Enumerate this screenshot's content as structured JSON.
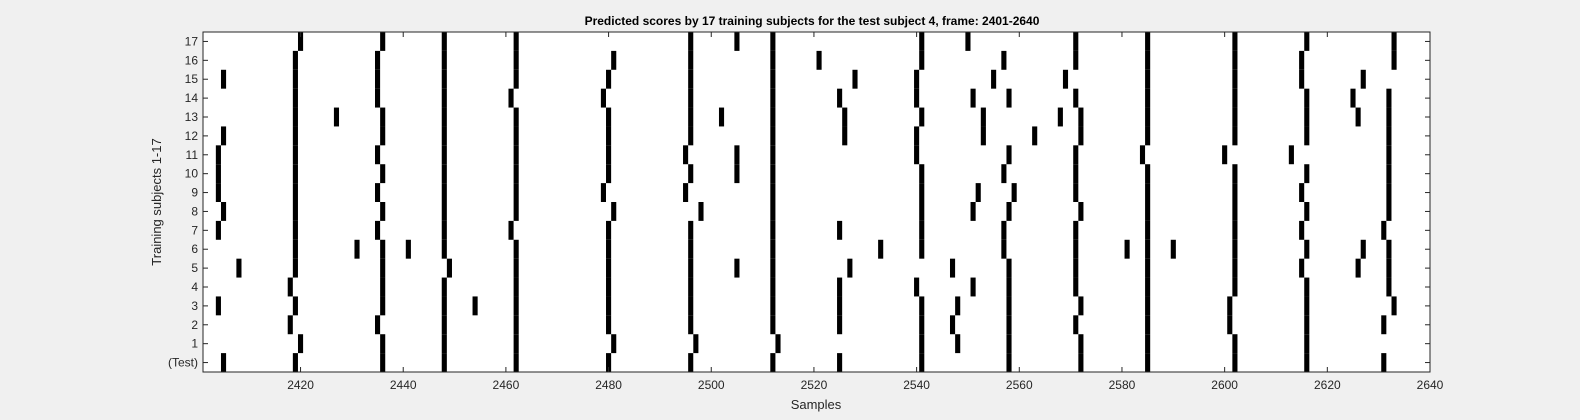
{
  "chart_data": {
    "type": "raster",
    "title": "Predicted scores by 17 training subjects for the test subject 4, frame: 2401-2640",
    "xlabel": "Samples",
    "ylabel": "Training subjects 1-17",
    "xlim": [
      2401,
      2640
    ],
    "xticks": [
      2420,
      2440,
      2460,
      2480,
      2500,
      2520,
      2540,
      2560,
      2580,
      2600,
      2620,
      2640
    ],
    "row_labels": [
      "(Test)",
      "1",
      "2",
      "3",
      "4",
      "5",
      "6",
      "7",
      "8",
      "9",
      "10",
      "11",
      "12",
      "13",
      "14",
      "15",
      "16",
      "17"
    ],
    "mark_color": "#000000",
    "rows": [
      {
        "label": "(Test)",
        "x": [
          2405,
          2419,
          2436,
          2448,
          2462,
          2480,
          2496,
          2512,
          2525,
          2541,
          2558,
          2572,
          2585,
          2602,
          2616,
          2631
        ]
      },
      {
        "label": "1",
        "x": [
          2420,
          2436,
          2448,
          2462,
          2481,
          2497,
          2513,
          2541,
          2548,
          2558,
          2572,
          2585,
          2602,
          2616
        ]
      },
      {
        "label": "2",
        "x": [
          2418,
          2435,
          2448,
          2462,
          2480,
          2496,
          2512,
          2525,
          2541,
          2547,
          2558,
          2571,
          2585,
          2601,
          2616,
          2631
        ]
      },
      {
        "label": "3",
        "x": [
          2404,
          2419,
          2436,
          2448,
          2454,
          2462,
          2480,
          2496,
          2512,
          2525,
          2541,
          2548,
          2558,
          2572,
          2585,
          2601,
          2616,
          2633
        ]
      },
      {
        "label": "4",
        "x": [
          2418,
          2436,
          2448,
          2462,
          2480,
          2496,
          2512,
          2525,
          2540,
          2551,
          2558,
          2571,
          2585,
          2602,
          2616,
          2632
        ]
      },
      {
        "label": "5",
        "x": [
          2408,
          2419,
          2436,
          2449,
          2462,
          2480,
          2496,
          2505,
          2512,
          2527,
          2547,
          2558,
          2571,
          2585,
          2602,
          2615,
          2626,
          2632
        ]
      },
      {
        "label": "6",
        "x": [
          2419,
          2431,
          2436,
          2441,
          2448,
          2462,
          2480,
          2496,
          2512,
          2533,
          2541,
          2557,
          2571,
          2581,
          2585,
          2590,
          2602,
          2616,
          2627,
          2632
        ]
      },
      {
        "label": "7",
        "x": [
          2404,
          2419,
          2435,
          2448,
          2461,
          2480,
          2496,
          2512,
          2525,
          2541,
          2557,
          2571,
          2585,
          2602,
          2615,
          2631
        ]
      },
      {
        "label": "8",
        "x": [
          2405,
          2419,
          2436,
          2448,
          2462,
          2481,
          2498,
          2512,
          2541,
          2551,
          2558,
          2572,
          2585,
          2602,
          2616,
          2632
        ]
      },
      {
        "label": "9",
        "x": [
          2404,
          2419,
          2435,
          2448,
          2462,
          2479,
          2495,
          2512,
          2541,
          2552,
          2559,
          2571,
          2585,
          2602,
          2615,
          2632
        ]
      },
      {
        "label": "10",
        "x": [
          2404,
          2419,
          2436,
          2448,
          2462,
          2480,
          2496,
          2505,
          2512,
          2541,
          2557,
          2571,
          2585,
          2602,
          2616,
          2632
        ]
      },
      {
        "label": "11",
        "x": [
          2404,
          2419,
          2435,
          2448,
          2462,
          2480,
          2495,
          2505,
          2512,
          2540,
          2558,
          2571,
          2584,
          2600,
          2613,
          2632
        ]
      },
      {
        "label": "12",
        "x": [
          2405,
          2419,
          2436,
          2448,
          2462,
          2480,
          2496,
          2512,
          2526,
          2540,
          2553,
          2563,
          2572,
          2585,
          2602,
          2616,
          2632
        ]
      },
      {
        "label": "13",
        "x": [
          2419,
          2427,
          2436,
          2448,
          2462,
          2480,
          2496,
          2502,
          2512,
          2526,
          2541,
          2553,
          2568,
          2572,
          2585,
          2602,
          2616,
          2626,
          2632
        ]
      },
      {
        "label": "14",
        "x": [
          2419,
          2435,
          2448,
          2461,
          2479,
          2496,
          2512,
          2525,
          2540,
          2551,
          2558,
          2571,
          2585,
          2602,
          2616,
          2625,
          2632
        ]
      },
      {
        "label": "15",
        "x": [
          2405,
          2419,
          2435,
          2448,
          2462,
          2480,
          2496,
          2512,
          2528,
          2540,
          2555,
          2569,
          2585,
          2602,
          2615,
          2627
        ]
      },
      {
        "label": "16",
        "x": [
          2419,
          2435,
          2448,
          2462,
          2481,
          2496,
          2512,
          2521,
          2541,
          2557,
          2571,
          2585,
          2602,
          2615,
          2633
        ]
      },
      {
        "label": "17",
        "x": [
          2420,
          2436,
          2448,
          2462,
          2496,
          2505,
          2512,
          2541,
          2550,
          2571,
          2585,
          2602,
          2616,
          2633
        ]
      }
    ]
  }
}
